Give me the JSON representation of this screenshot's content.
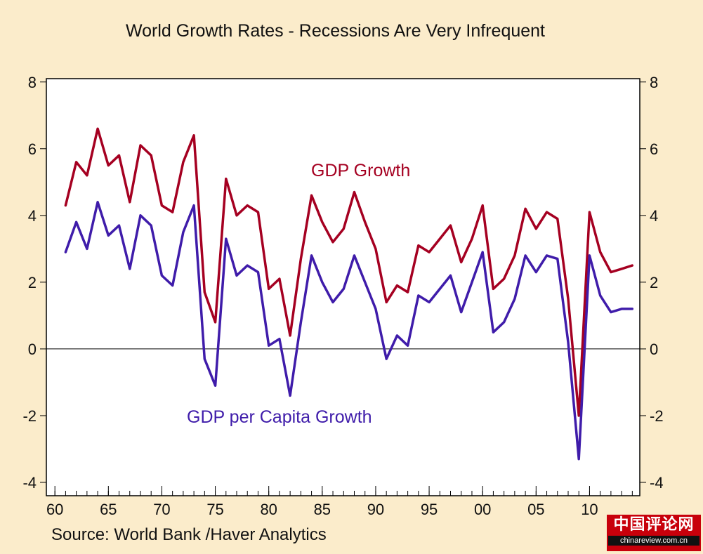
{
  "chart_data": {
    "type": "line",
    "title": "World Growth Rates - Recessions Are Very Infrequent",
    "source": "Source:  World Bank /Haver Analytics",
    "xlim": [
      1959.2,
      2014.7
    ],
    "ylim": [
      -4.4,
      8.1
    ],
    "x_ticks": [
      {
        "value": 1960,
        "label": "60"
      },
      {
        "value": 1965,
        "label": "65"
      },
      {
        "value": 1970,
        "label": "70"
      },
      {
        "value": 1975,
        "label": "75"
      },
      {
        "value": 1980,
        "label": "80"
      },
      {
        "value": 1985,
        "label": "85"
      },
      {
        "value": 1990,
        "label": "90"
      },
      {
        "value": 1995,
        "label": "95"
      },
      {
        "value": 2000,
        "label": "00"
      },
      {
        "value": 2005,
        "label": "05"
      },
      {
        "value": 2010,
        "label": "10"
      }
    ],
    "y_ticks": [
      {
        "value": -4,
        "label": "-4"
      },
      {
        "value": -2,
        "label": "-2"
      },
      {
        "value": 0,
        "label": "0"
      },
      {
        "value": 2,
        "label": "2"
      },
      {
        "value": 4,
        "label": "4"
      },
      {
        "value": 6,
        "label": "6"
      },
      {
        "value": 8,
        "label": "8"
      }
    ],
    "zero_line": true,
    "x": [
      1961,
      1962,
      1963,
      1964,
      1965,
      1966,
      1967,
      1968,
      1969,
      1970,
      1971,
      1972,
      1973,
      1974,
      1975,
      1976,
      1977,
      1978,
      1979,
      1980,
      1981,
      1982,
      1983,
      1984,
      1985,
      1986,
      1987,
      1988,
      1989,
      1990,
      1991,
      1992,
      1993,
      1994,
      1995,
      1996,
      1997,
      1998,
      1999,
      2000,
      2001,
      2002,
      2003,
      2004,
      2005,
      2006,
      2007,
      2008,
      2009,
      2010,
      2011,
      2012,
      2013,
      2014
    ],
    "series": [
      {
        "name": "GDP Growth",
        "color": "#a50021",
        "values": [
          4.3,
          5.6,
          5.2,
          6.6,
          5.5,
          5.8,
          4.4,
          6.1,
          5.8,
          4.3,
          4.1,
          5.6,
          6.4,
          1.7,
          0.8,
          5.1,
          4.0,
          4.3,
          4.1,
          1.8,
          2.1,
          0.4,
          2.7,
          4.6,
          3.8,
          3.2,
          3.6,
          4.7,
          3.8,
          3.0,
          1.4,
          1.9,
          1.7,
          3.1,
          2.9,
          3.3,
          3.7,
          2.6,
          3.3,
          4.3,
          1.8,
          2.1,
          2.8,
          4.2,
          3.6,
          4.1,
          3.9,
          1.5,
          -2.0,
          4.1,
          2.9,
          2.3,
          2.4,
          2.5
        ]
      },
      {
        "name": "GDP per Capita Growth",
        "color": "#3f1caa",
        "values": [
          2.9,
          3.8,
          3.0,
          4.4,
          3.4,
          3.7,
          2.4,
          4.0,
          3.7,
          2.2,
          1.9,
          3.5,
          4.3,
          -0.3,
          -1.1,
          3.3,
          2.2,
          2.5,
          2.3,
          0.1,
          0.3,
          -1.4,
          0.8,
          2.8,
          2.0,
          1.4,
          1.8,
          2.8,
          2.0,
          1.2,
          -0.3,
          0.4,
          0.1,
          1.6,
          1.4,
          1.8,
          2.2,
          1.1,
          2.0,
          2.9,
          0.5,
          0.8,
          1.5,
          2.8,
          2.3,
          2.8,
          2.7,
          0.2,
          -3.3,
          2.8,
          1.6,
          1.1,
          1.2,
          1.2
        ]
      }
    ]
  },
  "watermark": {
    "text": "中国评论网",
    "sub": "chinareview.com.cn"
  }
}
